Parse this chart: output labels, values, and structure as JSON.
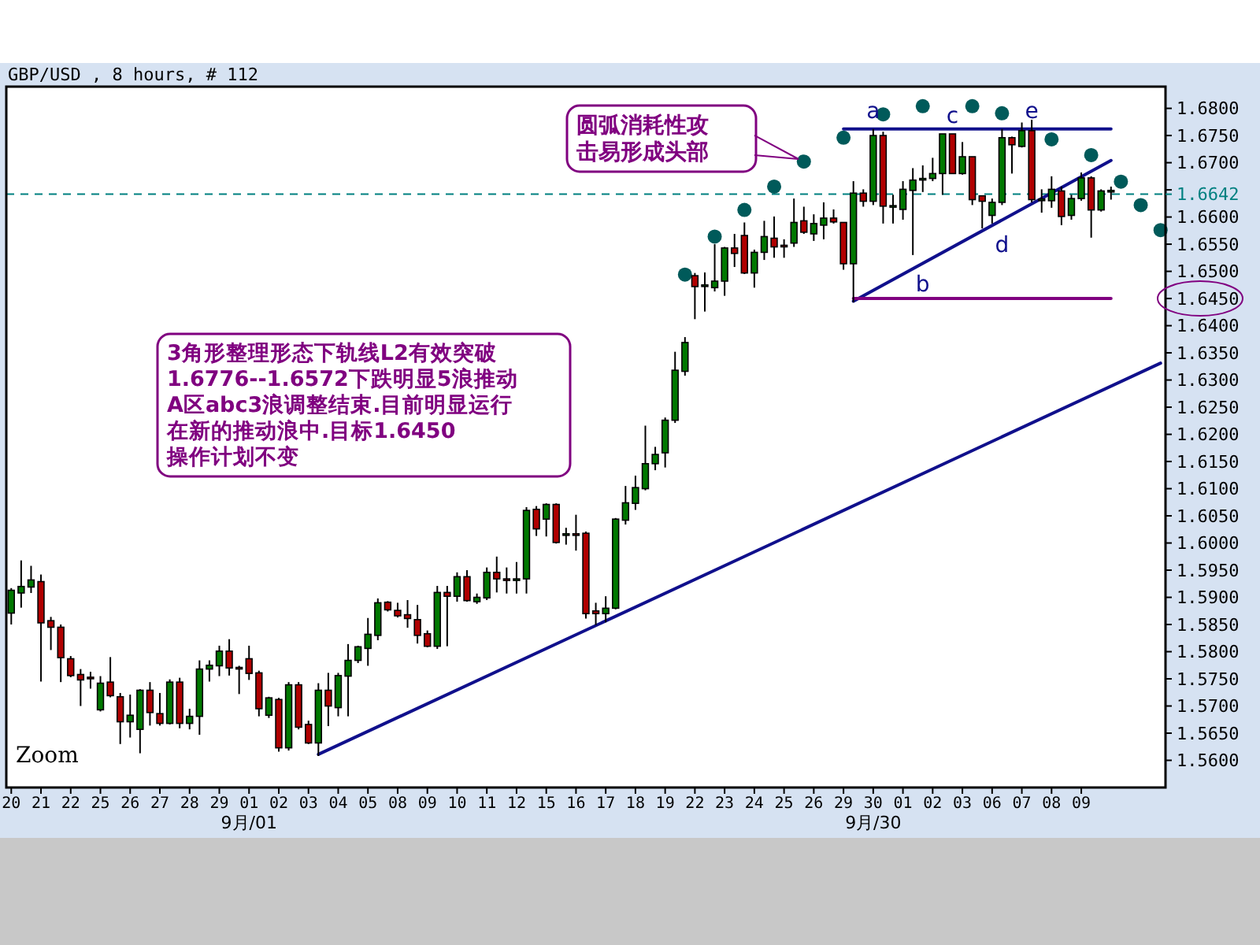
{
  "chart_data": {
    "type": "candlestick",
    "title": "GBP/USD , 8 hours, # 112",
    "categories": [
      "20",
      null,
      null,
      "21",
      null,
      null,
      "22",
      null,
      null,
      "25",
      null,
      null,
      "26",
      null,
      null,
      "27",
      null,
      null,
      "28",
      null,
      null,
      "29",
      null,
      null,
      "01",
      null,
      null,
      "02",
      null,
      null,
      "03",
      null,
      null,
      "04",
      null,
      null,
      "05",
      null,
      null,
      "08",
      null,
      null,
      "09",
      null,
      null,
      "10",
      null,
      null,
      "11",
      null,
      null,
      "12",
      null,
      null,
      "15",
      null,
      null,
      "16",
      null,
      null,
      "17",
      null,
      null,
      "18",
      null,
      null,
      "19",
      null,
      null,
      "22",
      null,
      null,
      "23",
      null,
      null,
      "24",
      null,
      null,
      "25",
      null,
      null,
      "26",
      null,
      null,
      "29",
      null,
      null,
      "30",
      null,
      null,
      "01",
      null,
      null,
      "02",
      null,
      null,
      "03",
      null,
      null,
      "06",
      null,
      null,
      "07",
      null,
      null,
      "08",
      null,
      null,
      "09",
      null,
      null,
      null,
      null,
      null,
      null,
      null,
      null
    ],
    "ohlc": [
      [
        1.5871,
        1.5917,
        1.585,
        1.5913
      ],
      [
        1.5908,
        1.5968,
        1.5881,
        1.592
      ],
      [
        1.5919,
        1.5958,
        1.5908,
        1.5932
      ],
      [
        1.5929,
        1.5942,
        1.5745,
        1.5853
      ],
      [
        1.5857,
        1.5864,
        1.5803,
        1.5845
      ],
      [
        1.5845,
        1.585,
        1.5744,
        1.5789
      ],
      [
        1.5787,
        1.5792,
        1.5753,
        1.5756
      ],
      [
        1.5758,
        1.5768,
        1.57,
        1.5748
      ],
      [
        1.5753,
        1.5763,
        1.5732,
        1.5752
      ],
      [
        1.5693,
        1.5755,
        1.569,
        1.5742
      ],
      [
        1.5744,
        1.579,
        1.5716,
        1.5719
      ],
      [
        1.5717,
        1.5724,
        1.563,
        1.5671
      ],
      [
        1.5671,
        1.5721,
        1.5642,
        1.5683
      ],
      [
        1.5657,
        1.5731,
        1.5613,
        1.5729
      ],
      [
        1.5729,
        1.5744,
        1.5664,
        1.5688
      ],
      [
        1.5686,
        1.5724,
        1.5664,
        1.5668
      ],
      [
        1.5668,
        1.5749,
        1.5666,
        1.5744
      ],
      [
        1.5744,
        1.5752,
        1.5659,
        1.5668
      ],
      [
        1.5668,
        1.5695,
        1.5657,
        1.5681
      ],
      [
        1.5681,
        1.5784,
        1.5647,
        1.5768
      ],
      [
        1.5768,
        1.5784,
        1.5745,
        1.5775
      ],
      [
        1.5774,
        1.5811,
        1.5755,
        1.5801
      ],
      [
        1.5801,
        1.5823,
        1.5756,
        1.577
      ],
      [
        1.5771,
        1.5774,
        1.5722,
        1.577
      ],
      [
        1.5787,
        1.5811,
        1.5748,
        1.576
      ],
      [
        1.5761,
        1.5765,
        1.5681,
        1.5695
      ],
      [
        1.5683,
        1.5717,
        1.5678,
        1.5715
      ],
      [
        1.5712,
        1.5715,
        1.5616,
        1.5623
      ],
      [
        1.5623,
        1.5744,
        1.5618,
        1.5739
      ],
      [
        1.5739,
        1.5744,
        1.5657,
        1.5661
      ],
      [
        1.5666,
        1.5673,
        1.563,
        1.5632
      ],
      [
        1.5632,
        1.5742,
        1.5608,
        1.5729
      ],
      [
        1.5729,
        1.5761,
        1.5663,
        1.57
      ],
      [
        1.5697,
        1.5761,
        1.5681,
        1.5756
      ],
      [
        1.5755,
        1.5814,
        1.5681,
        1.5784
      ],
      [
        1.5784,
        1.5811,
        1.5779,
        1.5809
      ],
      [
        1.5806,
        1.5862,
        1.5774,
        1.5832
      ],
      [
        1.583,
        1.5898,
        1.5821,
        1.589
      ],
      [
        1.5891,
        1.5893,
        1.5874,
        1.5877
      ],
      [
        1.5876,
        1.589,
        1.5863,
        1.5866
      ],
      [
        1.5868,
        1.5895,
        1.5844,
        1.5861
      ],
      [
        1.5859,
        1.5886,
        1.5815,
        1.583
      ],
      [
        1.5833,
        1.5839,
        1.5808,
        1.581
      ],
      [
        1.581,
        1.5921,
        1.5805,
        1.5909
      ],
      [
        1.5909,
        1.5921,
        1.581,
        1.5902
      ],
      [
        1.5902,
        1.5946,
        1.5892,
        1.5938
      ],
      [
        1.5938,
        1.595,
        1.5892,
        1.5894
      ],
      [
        1.5892,
        1.5907,
        1.5888,
        1.59
      ],
      [
        1.5899,
        1.5955,
        1.5895,
        1.5946
      ],
      [
        1.5946,
        1.5975,
        1.5909,
        1.5934
      ],
      [
        1.5934,
        1.5955,
        1.5907,
        1.5933
      ],
      [
        1.5933,
        1.5965,
        1.5907,
        1.5934
      ],
      [
        1.5934,
        1.6066,
        1.5907,
        1.606
      ],
      [
        1.6062,
        1.6068,
        1.6013,
        1.6026
      ],
      [
        1.6044,
        1.6073,
        1.6012,
        1.6071
      ],
      [
        1.6071,
        1.6073,
        1.5999,
        1.6001
      ],
      [
        1.6016,
        1.6028,
        1.5997,
        1.6017
      ],
      [
        1.6017,
        1.6052,
        1.5986,
        1.6016
      ],
      [
        1.6018,
        1.6021,
        1.5861,
        1.587
      ],
      [
        1.5875,
        1.589,
        1.5849,
        1.587
      ],
      [
        1.587,
        1.5902,
        1.5854,
        1.588
      ],
      [
        1.588,
        1.6046,
        1.5878,
        1.6044
      ],
      [
        1.6042,
        1.6105,
        1.6034,
        1.6074
      ],
      [
        1.6073,
        1.6124,
        1.6061,
        1.6102
      ],
      [
        1.61,
        1.6216,
        1.6097,
        1.6146
      ],
      [
        1.6146,
        1.6177,
        1.6134,
        1.6163
      ],
      [
        1.6166,
        1.6231,
        1.6139,
        1.6226
      ],
      [
        1.6226,
        1.6352,
        1.6221,
        1.6318
      ],
      [
        1.6316,
        1.6379,
        1.6308,
        1.6369
      ],
      [
        1.6492,
        1.6497,
        1.6412,
        1.6472
      ],
      [
        1.6474,
        1.6498,
        1.6426,
        1.6475
      ],
      [
        1.647,
        1.655,
        1.6463,
        1.6482
      ],
      [
        1.6482,
        1.6545,
        1.6455,
        1.6543
      ],
      [
        1.6543,
        1.6569,
        1.6508,
        1.6533
      ],
      [
        1.6566,
        1.659,
        1.6495,
        1.6497
      ],
      [
        1.6497,
        1.654,
        1.647,
        1.6535
      ],
      [
        1.6535,
        1.6593,
        1.6521,
        1.6564
      ],
      [
        1.6561,
        1.6601,
        1.6525,
        1.6545
      ],
      [
        1.6548,
        1.6559,
        1.6525,
        1.6547
      ],
      [
        1.6552,
        1.6634,
        1.6545,
        1.659
      ],
      [
        1.6593,
        1.6619,
        1.6569,
        1.6572
      ],
      [
        1.6569,
        1.6605,
        1.6556,
        1.6588
      ],
      [
        1.6585,
        1.6627,
        1.6559,
        1.6598
      ],
      [
        1.6598,
        1.6614,
        1.6588,
        1.6591
      ],
      [
        1.659,
        1.659,
        1.6503,
        1.6514
      ],
      [
        1.6514,
        1.6666,
        1.6443,
        1.6644
      ],
      [
        1.6644,
        1.6651,
        1.6619,
        1.6629
      ],
      [
        1.6629,
        1.6762,
        1.6622,
        1.675
      ],
      [
        1.675,
        1.6757,
        1.6588,
        1.662
      ],
      [
        1.662,
        1.6641,
        1.6588,
        1.6621
      ],
      [
        1.6614,
        1.6666,
        1.6595,
        1.6651
      ],
      [
        1.6649,
        1.669,
        1.653,
        1.6668
      ],
      [
        1.667,
        1.6695,
        1.6646,
        1.6671
      ],
      [
        1.6671,
        1.6709,
        1.6666,
        1.668
      ],
      [
        1.668,
        1.6753,
        1.6641,
        1.6753
      ],
      [
        1.6753,
        1.6753,
        1.668,
        1.668
      ],
      [
        1.668,
        1.6738,
        1.6678,
        1.6711
      ],
      [
        1.6711,
        1.6711,
        1.6622,
        1.6632
      ],
      [
        1.6639,
        1.6639,
        1.6579,
        1.6629
      ],
      [
        1.6603,
        1.6634,
        1.6588,
        1.6627
      ],
      [
        1.6627,
        1.6762,
        1.6622,
        1.6746
      ],
      [
        1.6746,
        1.6748,
        1.668,
        1.6733
      ],
      [
        1.673,
        1.6774,
        1.6728,
        1.6759
      ],
      [
        1.6759,
        1.6779,
        1.6627,
        1.6632
      ],
      [
        1.6632,
        1.6651,
        1.6608,
        1.6633
      ],
      [
        1.663,
        1.6675,
        1.6617,
        1.6651
      ],
      [
        1.6648,
        1.6656,
        1.6585,
        1.6601
      ],
      [
        1.6603,
        1.6641,
        1.6595,
        1.6634
      ],
      [
        1.6634,
        1.6682,
        1.663,
        1.6672
      ],
      [
        1.6672,
        1.6675,
        1.6562,
        1.6613
      ],
      [
        1.6613,
        1.6651,
        1.661,
        1.6648
      ],
      [
        1.6648,
        1.6656,
        1.6632,
        1.6649
      ],
      null,
      null,
      null,
      null,
      null
    ],
    "series": [
      {
        "type": "line",
        "color": "#10108c",
        "values": [
          null,
          null,
          null,
          null,
          null,
          null,
          null,
          null,
          null,
          null,
          null,
          null,
          null,
          null,
          null,
          null,
          null,
          null,
          null,
          null,
          null,
          null,
          null,
          null,
          null,
          null,
          null,
          null,
          null,
          null,
          null,
          1.5611,
          null,
          null,
          null,
          null,
          null,
          null,
          null,
          null,
          null,
          null,
          null,
          null,
          null,
          null,
          null,
          null,
          null,
          null,
          null,
          null,
          null,
          null,
          null,
          null,
          null,
          null,
          null,
          null,
          null,
          null,
          null,
          null,
          null,
          null,
          null,
          null,
          null,
          null,
          null,
          null,
          null,
          null,
          null,
          null,
          null,
          null,
          null,
          null,
          null,
          null,
          null,
          null,
          null,
          null,
          null,
          null,
          null,
          null,
          null,
          null,
          null,
          null,
          null,
          null,
          null,
          null,
          null,
          null,
          null,
          null,
          null,
          null,
          null,
          null,
          null,
          null,
          null,
          null,
          null,
          null,
          null,
          null,
          null,
          null,
          1.6331
        ]
      },
      {
        "type": "line",
        "color": "#10108c",
        "values": [
          null,
          null,
          null,
          null,
          null,
          null,
          null,
          null,
          null,
          null,
          null,
          null,
          null,
          null,
          null,
          null,
          null,
          null,
          null,
          null,
          null,
          null,
          null,
          null,
          null,
          null,
          null,
          null,
          null,
          null,
          null,
          null,
          null,
          null,
          null,
          null,
          null,
          null,
          null,
          null,
          null,
          null,
          null,
          null,
          null,
          null,
          null,
          null,
          null,
          null,
          null,
          null,
          null,
          null,
          null,
          null,
          null,
          null,
          null,
          null,
          null,
          null,
          null,
          null,
          null,
          null,
          null,
          null,
          null,
          null,
          null,
          null,
          null,
          null,
          null,
          null,
          null,
          null,
          null,
          null,
          null,
          null,
          null,
          null,
          1.6762,
          null,
          null,
          null,
          null,
          null,
          null,
          null,
          null,
          null,
          null,
          null,
          null,
          null,
          null,
          null,
          null,
          null,
          null,
          null,
          null,
          null,
          null,
          null,
          null,
          null,
          null,
          1.6762,
          null,
          null,
          null,
          null,
          null
        ]
      },
      {
        "type": "line",
        "color": "#10108c",
        "values": [
          null,
          null,
          null,
          null,
          null,
          null,
          null,
          null,
          null,
          null,
          null,
          null,
          null,
          null,
          null,
          null,
          null,
          null,
          null,
          null,
          null,
          null,
          null,
          null,
          null,
          null,
          null,
          null,
          null,
          null,
          null,
          null,
          null,
          null,
          null,
          null,
          null,
          null,
          null,
          null,
          null,
          null,
          null,
          null,
          null,
          null,
          null,
          null,
          null,
          null,
          null,
          null,
          null,
          null,
          null,
          null,
          null,
          null,
          null,
          null,
          null,
          null,
          null,
          null,
          null,
          null,
          null,
          null,
          null,
          null,
          null,
          null,
          null,
          null,
          null,
          null,
          null,
          null,
          null,
          null,
          null,
          null,
          null,
          null,
          null,
          1.6445,
          null,
          null,
          null,
          null,
          null,
          null,
          null,
          null,
          null,
          null,
          null,
          null,
          null,
          null,
          null,
          null,
          null,
          null,
          null,
          null,
          null,
          null,
          null,
          null,
          null,
          1.6704,
          null,
          null,
          null,
          null,
          null
        ]
      },
      {
        "type": "line",
        "color": "#800080",
        "values": [
          null,
          null,
          null,
          null,
          null,
          null,
          null,
          null,
          null,
          null,
          null,
          null,
          null,
          null,
          null,
          null,
          null,
          null,
          null,
          null,
          null,
          null,
          null,
          null,
          null,
          null,
          null,
          null,
          null,
          null,
          null,
          null,
          null,
          null,
          null,
          null,
          null,
          null,
          null,
          null,
          null,
          null,
          null,
          null,
          null,
          null,
          null,
          null,
          null,
          null,
          null,
          null,
          null,
          null,
          null,
          null,
          null,
          null,
          null,
          null,
          null,
          null,
          null,
          null,
          null,
          null,
          null,
          null,
          null,
          null,
          null,
          null,
          null,
          null,
          null,
          null,
          null,
          null,
          null,
          null,
          null,
          null,
          null,
          null,
          null,
          1.645,
          null,
          null,
          null,
          null,
          null,
          null,
          null,
          null,
          null,
          null,
          null,
          null,
          null,
          null,
          null,
          null,
          null,
          null,
          null,
          null,
          null,
          null,
          null,
          null,
          null,
          1.645,
          null,
          null,
          null,
          null,
          null
        ]
      },
      {
        "type": "scatter",
        "color": "#005a5a",
        "marker": "circle",
        "values": [
          null,
          null,
          null,
          null,
          null,
          null,
          null,
          null,
          null,
          null,
          null,
          null,
          null,
          null,
          null,
          null,
          null,
          null,
          null,
          null,
          null,
          null,
          null,
          null,
          null,
          null,
          null,
          null,
          null,
          null,
          null,
          null,
          null,
          null,
          null,
          null,
          null,
          null,
          null,
          null,
          null,
          null,
          null,
          null,
          null,
          null,
          null,
          null,
          null,
          null,
          null,
          null,
          null,
          null,
          null,
          null,
          null,
          null,
          null,
          null,
          null,
          null,
          null,
          null,
          null,
          null,
          null,
          null,
          1.6494,
          null,
          null,
          1.6564,
          null,
          null,
          1.6613,
          null,
          null,
          1.6656,
          null,
          null,
          1.6702,
          null,
          null,
          null,
          1.6746,
          null,
          null,
          null,
          1.6789,
          null,
          null,
          null,
          1.6804,
          null,
          null,
          null,
          null,
          1.6804,
          null,
          null,
          1.6791,
          null,
          null,
          null,
          null,
          1.6743,
          null,
          null,
          null,
          1.6714,
          null,
          null,
          1.6665,
          null,
          1.6622,
          null,
          1.6576
        ]
      }
    ],
    "ref_lines": [
      {
        "axis": "y",
        "value": 1.6642,
        "label": "1.6642",
        "color": "#008080",
        "line_style": "dashed"
      }
    ],
    "ylim": [
      1.555,
      1.684
    ],
    "yticks": [
      {
        "value": 1.56,
        "label": "1.5600"
      },
      {
        "value": 1.565,
        "label": "1.5650"
      },
      {
        "value": 1.57,
        "label": "1.5700"
      },
      {
        "value": 1.575,
        "label": "1.5750"
      },
      {
        "value": 1.58,
        "label": "1.5800"
      },
      {
        "value": 1.585,
        "label": "1.5850"
      },
      {
        "value": 1.59,
        "label": "1.5900"
      },
      {
        "value": 1.595,
        "label": "1.5950"
      },
      {
        "value": 1.6,
        "label": "1.6000"
      },
      {
        "value": 1.605,
        "label": "1.6050"
      },
      {
        "value": 1.61,
        "label": "1.6100"
      },
      {
        "value": 1.615,
        "label": "1.6150"
      },
      {
        "value": 1.62,
        "label": "1.6200"
      },
      {
        "value": 1.625,
        "label": "1.6250"
      },
      {
        "value": 1.63,
        "label": "1.6300"
      },
      {
        "value": 1.635,
        "label": "1.6350"
      },
      {
        "value": 1.64,
        "label": "1.6400"
      },
      {
        "value": 1.645,
        "label": "1.6450"
      },
      {
        "value": 1.65,
        "label": "1.6500"
      },
      {
        "value": 1.655,
        "label": "1.6550"
      },
      {
        "value": 1.66,
        "label": "1.6600"
      },
      {
        "value": 1.665,
        "label": null
      },
      {
        "value": 1.67,
        "label": "1.6700"
      },
      {
        "value": 1.675,
        "label": "1.6750"
      },
      {
        "value": 1.68,
        "label": "1.6800"
      }
    ],
    "annotations": [
      "圆弧消耗性攻击易形成头部",
      "3角形整理形态下轨线L2有效突破1.6776--1.6572下跌明显5浪推动A区abc3浪调整结束.目前明显运行在新的推动浪中.目标1.6450操作计划不变",
      "Zoom",
      "a",
      "b",
      "c",
      "d",
      "e",
      "9月/01",
      "9月/30"
    ]
  }
}
